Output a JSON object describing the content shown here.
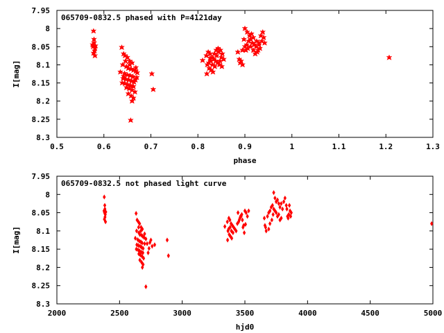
{
  "chart_data": [
    {
      "type": "scatter",
      "title": "065709-0832.5 phased with P=4121day",
      "xlabel": "phase",
      "ylabel": "I[mag]",
      "xlim": [
        0.5,
        1.3
      ],
      "ylim": [
        7.95,
        8.3
      ],
      "y_inverted": true,
      "xticks": [
        "0.5",
        "0.6",
        "0.7",
        "0.8",
        "0.9",
        "1",
        "1.1",
        "1.2",
        "1.3"
      ],
      "xtick_values": [
        0.5,
        0.6,
        0.7,
        0.8,
        0.9,
        1.0,
        1.1,
        1.2,
        1.3
      ],
      "yticks": [
        "7.95",
        "8",
        "8.05",
        "8.1",
        "8.15",
        "8.2",
        "8.25",
        "8.3"
      ],
      "ytick_values": [
        7.95,
        8.0,
        8.05,
        8.1,
        8.15,
        8.2,
        8.25,
        8.3
      ],
      "grid": false,
      "color": "#ff0000",
      "marker": "star",
      "series": [
        {
          "points": [
            [
              0.578,
              8.007
            ],
            [
              0.579,
              8.03
            ],
            [
              0.576,
              8.045
            ],
            [
              0.577,
              8.05
            ],
            [
              0.581,
              8.055
            ],
            [
              0.58,
              8.062
            ],
            [
              0.578,
              8.068
            ],
            [
              0.581,
              8.075
            ],
            [
              0.579,
              8.04
            ],
            [
              0.582,
              8.048
            ],
            [
              0.638,
              8.052
            ],
            [
              0.642,
              8.07
            ],
            [
              0.645,
              8.075
            ],
            [
              0.65,
              8.08
            ],
            [
              0.655,
              8.09
            ],
            [
              0.66,
              8.095
            ],
            [
              0.64,
              8.1
            ],
            [
              0.648,
              8.105
            ],
            [
              0.652,
              8.11
            ],
            [
              0.658,
              8.112
            ],
            [
              0.663,
              8.115
            ],
            [
              0.668,
              8.118
            ],
            [
              0.635,
              8.12
            ],
            [
              0.644,
              8.124
            ],
            [
              0.65,
              8.128
            ],
            [
              0.656,
              8.13
            ],
            [
              0.662,
              8.133
            ],
            [
              0.67,
              8.135
            ],
            [
              0.641,
              8.138
            ],
            [
              0.647,
              8.14
            ],
            [
              0.653,
              8.142
            ],
            [
              0.659,
              8.145
            ],
            [
              0.664,
              8.148
            ],
            [
              0.639,
              8.15
            ],
            [
              0.645,
              8.152
            ],
            [
              0.651,
              8.155
            ],
            [
              0.657,
              8.158
            ],
            [
              0.663,
              8.16
            ],
            [
              0.648,
              8.163
            ],
            [
              0.654,
              8.166
            ],
            [
              0.66,
              8.17
            ],
            [
              0.666,
              8.175
            ],
            [
              0.652,
              8.18
            ],
            [
              0.658,
              8.186
            ],
            [
              0.663,
              8.192
            ],
            [
              0.66,
              8.2
            ],
            [
              0.657,
              8.253
            ],
            [
              0.702,
              8.125
            ],
            [
              0.705,
              8.168
            ],
            [
              0.668,
              8.108
            ],
            [
              0.671,
              8.122
            ],
            [
              0.646,
              8.09
            ],
            [
              0.655,
              8.1
            ],
            [
              0.642,
              8.132
            ],
            [
              0.667,
              8.142
            ],
            [
              0.81,
              8.088
            ],
            [
              0.818,
              8.075
            ],
            [
              0.822,
              8.065
            ],
            [
              0.826,
              8.07
            ],
            [
              0.83,
              8.08
            ],
            [
              0.834,
              8.085
            ],
            [
              0.838,
              8.09
            ],
            [
              0.842,
              8.095
            ],
            [
              0.846,
              8.1
            ],
            [
              0.85,
              8.08
            ],
            [
              0.82,
              8.1
            ],
            [
              0.824,
              8.11
            ],
            [
              0.828,
              8.115
            ],
            [
              0.832,
              8.12
            ],
            [
              0.836,
              8.105
            ],
            [
              0.84,
              8.075
            ],
            [
              0.844,
              8.065
            ],
            [
              0.848,
              8.06
            ],
            [
              0.852,
              8.07
            ],
            [
              0.855,
              8.085
            ],
            [
              0.819,
              8.125
            ],
            [
              0.823,
              8.095
            ],
            [
              0.827,
              8.09
            ],
            [
              0.831,
              8.1
            ],
            [
              0.835,
              8.07
            ],
            [
              0.839,
              8.06
            ],
            [
              0.843,
              8.055
            ],
            [
              0.847,
              8.09
            ],
            [
              0.851,
              8.105
            ],
            [
              0.826,
              8.082
            ],
            [
              0.885,
              8.065
            ],
            [
              0.888,
              8.085
            ],
            [
              0.892,
              8.09
            ],
            [
              0.895,
              8.06
            ],
            [
              0.9,
              8.05
            ],
            [
              0.904,
              8.045
            ],
            [
              0.908,
              8.035
            ],
            [
              0.912,
              8.03
            ],
            [
              0.916,
              8.04
            ],
            [
              0.92,
              8.045
            ],
            [
              0.924,
              8.05
            ],
            [
              0.928,
              8.06
            ],
            [
              0.932,
              8.055
            ],
            [
              0.936,
              8.035
            ],
            [
              0.94,
              8.025
            ],
            [
              0.9,
              8.0
            ],
            [
              0.905,
              8.01
            ],
            [
              0.91,
              8.02
            ],
            [
              0.914,
              8.015
            ],
            [
              0.918,
              8.025
            ],
            [
              0.922,
              8.07
            ],
            [
              0.926,
              8.065
            ],
            [
              0.93,
              8.04
            ],
            [
              0.934,
              8.02
            ],
            [
              0.938,
              8.01
            ],
            [
              0.898,
              8.03
            ],
            [
              0.902,
              8.06
            ],
            [
              0.906,
              8.055
            ],
            [
              0.89,
              8.095
            ],
            [
              0.895,
              8.1
            ],
            [
              0.912,
              8.05
            ],
            [
              0.918,
              8.06
            ],
            [
              0.925,
              8.035
            ],
            [
              0.93,
              8.045
            ],
            [
              0.942,
              8.04
            ],
            [
              1.207,
              8.08
            ]
          ]
        }
      ]
    },
    {
      "type": "scatter",
      "title": "065709-0832.5 not phased light curve",
      "xlabel": "hjd0",
      "ylabel": "I[mag]",
      "xlim": [
        2000,
        5000
      ],
      "ylim": [
        7.95,
        8.3
      ],
      "y_inverted": true,
      "xticks": [
        "2000",
        "2500",
        "3000",
        "3500",
        "4000",
        "4500",
        "5000"
      ],
      "xtick_values": [
        2000,
        2500,
        3000,
        3500,
        4000,
        4500,
        5000
      ],
      "yticks": [
        "7.95",
        "8",
        "8.05",
        "8.1",
        "8.15",
        "8.2",
        "8.25",
        "8.3"
      ],
      "ytick_values": [
        7.95,
        8.0,
        8.05,
        8.1,
        8.15,
        8.2,
        8.25,
        8.3
      ],
      "grid": false,
      "color": "#ff0000",
      "marker": "diamond",
      "series": [
        {
          "points": [
            [
              2378,
              8.007
            ],
            [
              2382,
              8.03
            ],
            [
              2376,
              8.045
            ],
            [
              2380,
              8.05
            ],
            [
              2386,
              8.055
            ],
            [
              2384,
              8.062
            ],
            [
              2379,
              8.068
            ],
            [
              2388,
              8.075
            ],
            [
              2383,
              8.04
            ],
            [
              2390,
              8.048
            ],
            [
              2632,
              8.052
            ],
            [
              2640,
              8.07
            ],
            [
              2650,
              8.075
            ],
            [
              2660,
              8.08
            ],
            [
              2672,
              8.09
            ],
            [
              2682,
              8.095
            ],
            [
              2636,
              8.1
            ],
            [
              2654,
              8.105
            ],
            [
              2662,
              8.11
            ],
            [
              2676,
              8.112
            ],
            [
              2686,
              8.115
            ],
            [
              2696,
              8.118
            ],
            [
              2626,
              8.12
            ],
            [
              2645,
              8.124
            ],
            [
              2658,
              8.128
            ],
            [
              2670,
              8.13
            ],
            [
              2680,
              8.133
            ],
            [
              2700,
              8.135
            ],
            [
              2638,
              8.138
            ],
            [
              2650,
              8.14
            ],
            [
              2664,
              8.142
            ],
            [
              2676,
              8.145
            ],
            [
              2688,
              8.148
            ],
            [
              2634,
              8.15
            ],
            [
              2648,
              8.152
            ],
            [
              2660,
              8.155
            ],
            [
              2674,
              8.158
            ],
            [
              2686,
              8.16
            ],
            [
              2654,
              8.163
            ],
            [
              2666,
              8.166
            ],
            [
              2680,
              8.17
            ],
            [
              2692,
              8.175
            ],
            [
              2662,
              8.18
            ],
            [
              2676,
              8.186
            ],
            [
              2688,
              8.192
            ],
            [
              2682,
              8.2
            ],
            [
              2710,
              8.253
            ],
            [
              2880,
              8.125
            ],
            [
              2890,
              8.168
            ],
            [
              2700,
              8.108
            ],
            [
              2710,
              8.122
            ],
            [
              2652,
              8.09
            ],
            [
              2670,
              8.1
            ],
            [
              2742,
              8.132
            ],
            [
              2760,
              8.142
            ],
            [
              2720,
              8.135
            ],
            [
              2735,
              8.148
            ],
            [
              2750,
              8.125
            ],
            [
              2780,
              8.138
            ],
            [
              2728,
              8.16
            ],
            [
              3340,
              8.088
            ],
            [
              3360,
              8.075
            ],
            [
              3372,
              8.065
            ],
            [
              3380,
              8.07
            ],
            [
              3390,
              8.08
            ],
            [
              3400,
              8.085
            ],
            [
              3410,
              8.09
            ],
            [
              3420,
              8.095
            ],
            [
              3430,
              8.1
            ],
            [
              3440,
              8.08
            ],
            [
              3365,
              8.1
            ],
            [
              3375,
              8.11
            ],
            [
              3385,
              8.115
            ],
            [
              3395,
              8.12
            ],
            [
              3405,
              8.105
            ],
            [
              3450,
              8.075
            ],
            [
              3460,
              8.065
            ],
            [
              3470,
              8.06
            ],
            [
              3480,
              8.07
            ],
            [
              3490,
              8.085
            ],
            [
              3362,
              8.125
            ],
            [
              3370,
              8.095
            ],
            [
              3382,
              8.09
            ],
            [
              3392,
              8.1
            ],
            [
              3455,
              8.07
            ],
            [
              3465,
              8.06
            ],
            [
              3475,
              8.055
            ],
            [
              3485,
              8.09
            ],
            [
              3495,
              8.105
            ],
            [
              3505,
              8.082
            ],
            [
              3500,
              8.045
            ],
            [
              3510,
              8.05
            ],
            [
              3520,
              8.06
            ],
            [
              3530,
              8.045
            ],
            [
              3445,
              8.05
            ],
            [
              3655,
              8.065
            ],
            [
              3660,
              8.085
            ],
            [
              3665,
              8.09
            ],
            [
              3670,
              8.1
            ],
            [
              3680,
              8.06
            ],
            [
              3690,
              8.05
            ],
            [
              3700,
              8.045
            ],
            [
              3710,
              8.035
            ],
            [
              3720,
              8.03
            ],
            [
              3730,
              8.04
            ],
            [
              3740,
              8.045
            ],
            [
              3750,
              8.05
            ],
            [
              3760,
              8.06
            ],
            [
              3770,
              8.055
            ],
            [
              3780,
              8.035
            ],
            [
              3790,
              8.025
            ],
            [
              3730,
              7.995
            ],
            [
              3740,
              8.01
            ],
            [
              3750,
              8.02
            ],
            [
              3760,
              8.015
            ],
            [
              3770,
              8.025
            ],
            [
              3780,
              8.07
            ],
            [
              3790,
              8.065
            ],
            [
              3800,
              8.04
            ],
            [
              3810,
              8.02
            ],
            [
              3820,
              8.01
            ],
            [
              3830,
              8.03
            ],
            [
              3840,
              8.06
            ],
            [
              3850,
              8.055
            ],
            [
              3860,
              8.045
            ],
            [
              3870,
              8.05
            ],
            [
              3690,
              8.095
            ],
            [
              3700,
              8.08
            ],
            [
              3715,
              8.07
            ],
            [
              3725,
              8.055
            ],
            [
              3835,
              8.04
            ],
            [
              3845,
              8.065
            ],
            [
              3855,
              8.03
            ],
            [
              3865,
              8.06
            ],
            [
              4990,
              8.08
            ]
          ]
        }
      ]
    }
  ]
}
